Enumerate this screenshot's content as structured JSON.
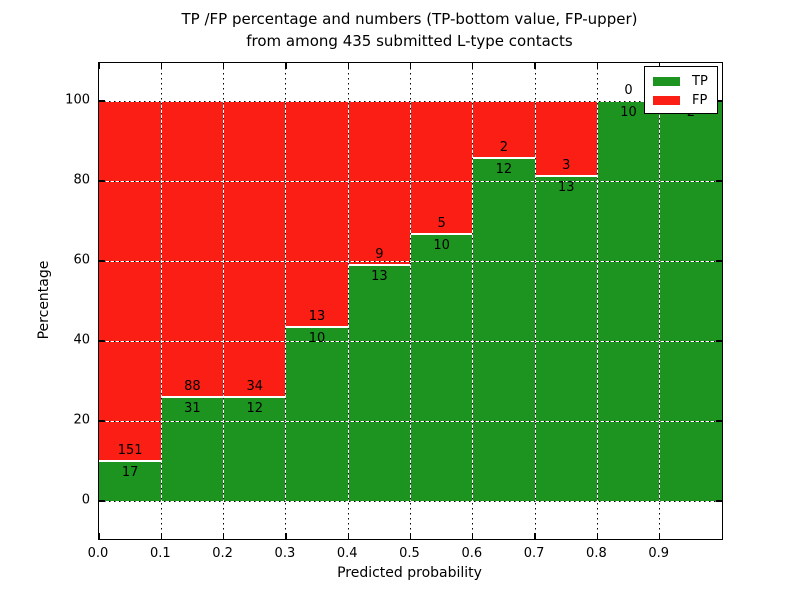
{
  "chart_data": {
    "type": "bar",
    "variant": "stacked-percentage-histogram",
    "title_line1": "TP /FP percentage and numbers (TP-bottom value, FP-upper)",
    "title_line2": "from among 435 submitted L-type contacts",
    "xlabel": "Predicted probability",
    "ylabel": "Percentage",
    "x_tick_labels": [
      "0.0",
      "0.1",
      "0.2",
      "0.3",
      "0.4",
      "0.5",
      "0.6",
      "0.7",
      "0.8",
      "0.9"
    ],
    "y_tick_values": [
      0,
      20,
      40,
      60,
      80,
      100
    ],
    "y_tick_labels": [
      "0",
      "20",
      "40",
      "60",
      "80",
      "100"
    ],
    "xlim": [
      0.0,
      1.0
    ],
    "ylim": [
      -9.5,
      109.5
    ],
    "bin_width": 0.1,
    "bin_starts": [
      0.0,
      0.1,
      0.2,
      0.3,
      0.4,
      0.5,
      0.6,
      0.7,
      0.8,
      0.9
    ],
    "series": [
      {
        "name": "TP",
        "color": "#1e9420",
        "values": [
          17,
          31,
          12,
          10,
          13,
          10,
          12,
          13,
          10,
          2
        ]
      },
      {
        "name": "FP",
        "color": "#fa1e14",
        "values": [
          151,
          88,
          34,
          13,
          9,
          5,
          2,
          3,
          0,
          0
        ]
      }
    ],
    "tp_percent": [
      10.1,
      26.1,
      26.1,
      43.5,
      59.1,
      66.7,
      85.7,
      81.3,
      100.0,
      100.0
    ],
    "bar_rule": "each bin normalized to 100%; TP green on bottom, FP red on top; raw counts labeled at the TP/FP boundary (FP above, TP below)",
    "legend": {
      "position": "upper right",
      "entries": [
        "TP",
        "FP"
      ]
    },
    "grid": {
      "style": "dotted",
      "horizontal": true,
      "vertical": true
    }
  }
}
